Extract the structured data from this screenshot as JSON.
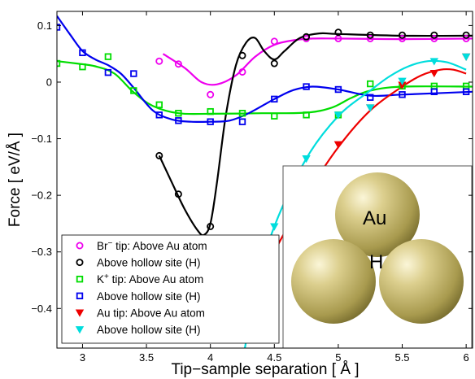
{
  "chart_data": {
    "type": "line",
    "xlabel": "Tip−sample separation [ Å ]",
    "ylabel": "Force [ eV/Å ]",
    "xlim": [
      2.8,
      6.05
    ],
    "ylim": [
      -0.47,
      0.125
    ],
    "xticks": [
      3,
      3.5,
      4,
      4.5,
      5,
      5.5,
      6
    ],
    "xtick_labels": [
      "3",
      "3.5",
      "4",
      "4.5",
      "5",
      "5.5",
      "6"
    ],
    "yticks": [
      0.1,
      0,
      -0.1,
      -0.2,
      -0.3,
      -0.4
    ],
    "ytick_labels": [
      "0.1",
      "0",
      "−0.1",
      "−0.2",
      "−0.3",
      "−0.4"
    ],
    "grid": false,
    "legend_position": "lower-left",
    "legend_title_parts": [
      {
        "base": "Br",
        "sup": "−",
        "rest": " tip: Above Au atom"
      },
      {
        "base": "K",
        "sup": "+",
        "rest": " tip: Above Au atom"
      }
    ],
    "series": [
      {
        "name": "Br⁻ tip: Above Au atom",
        "color": "#ee00ee",
        "marker": "circle",
        "x": [
          3.6,
          3.75,
          4.0,
          4.25,
          4.5,
          4.75,
          5.0,
          5.25,
          5.5,
          5.75,
          6.0
        ],
        "y": [
          0.037,
          0.032,
          -0.022,
          0.018,
          0.072,
          0.077,
          0.077,
          0.077,
          0.077,
          0.077,
          0.077
        ],
        "curve": [
          [
            3.63,
            0.05
          ],
          [
            3.8,
            0.025
          ],
          [
            3.93,
            0.0
          ],
          [
            4.05,
            -0.004
          ],
          [
            4.2,
            0.012
          ],
          [
            4.35,
            0.045
          ],
          [
            4.5,
            0.066
          ],
          [
            4.65,
            0.074
          ],
          [
            4.8,
            0.077
          ],
          [
            5.0,
            0.077
          ],
          [
            5.5,
            0.076
          ],
          [
            6.05,
            0.077
          ]
        ]
      },
      {
        "name": "Above hollow site (H)",
        "color": "#000000",
        "marker": "circle",
        "x": [
          3.6,
          3.75,
          4.0,
          4.25,
          4.5,
          4.75,
          5.0,
          5.25,
          5.5,
          5.75,
          6.0
        ],
        "y": [
          -0.13,
          -0.198,
          -0.255,
          0.047,
          0.033,
          0.08,
          0.088,
          0.083,
          0.083,
          0.083,
          0.083
        ],
        "curve": [
          [
            3.6,
            -0.13
          ],
          [
            3.7,
            -0.178
          ],
          [
            3.8,
            -0.225
          ],
          [
            3.9,
            -0.262
          ],
          [
            3.95,
            -0.27
          ],
          [
            4.0,
            -0.25
          ],
          [
            4.05,
            -0.18
          ],
          [
            4.12,
            -0.06
          ],
          [
            4.2,
            0.03
          ],
          [
            4.28,
            0.07
          ],
          [
            4.35,
            0.078
          ],
          [
            4.42,
            0.055
          ],
          [
            4.5,
            0.04
          ],
          [
            4.58,
            0.055
          ],
          [
            4.7,
            0.078
          ],
          [
            4.85,
            0.086
          ],
          [
            5.0,
            0.085
          ],
          [
            5.5,
            0.082
          ],
          [
            6.05,
            0.082
          ]
        ]
      },
      {
        "name": "K⁺ tip: Above Au atom",
        "color": "#00dd00",
        "marker": "square",
        "x": [
          2.8,
          3.0,
          3.2,
          3.4,
          3.6,
          3.75,
          4.0,
          4.25,
          4.5,
          4.75,
          5.0,
          5.25,
          5.5,
          5.75,
          6.0
        ],
        "y": [
          0.033,
          0.027,
          0.045,
          -0.015,
          -0.04,
          -0.055,
          -0.052,
          -0.055,
          -0.06,
          -0.058,
          -0.058,
          -0.003,
          -0.007,
          -0.007,
          -0.007
        ],
        "curve": [
          [
            2.8,
            0.037
          ],
          [
            2.95,
            0.033
          ],
          [
            3.1,
            0.028
          ],
          [
            3.25,
            0.015
          ],
          [
            3.4,
            -0.018
          ],
          [
            3.55,
            -0.042
          ],
          [
            3.75,
            -0.055
          ],
          [
            4.0,
            -0.056
          ],
          [
            4.4,
            -0.055
          ],
          [
            4.75,
            -0.054
          ],
          [
            4.95,
            -0.045
          ],
          [
            5.1,
            -0.028
          ],
          [
            5.25,
            -0.015
          ],
          [
            5.5,
            -0.008
          ],
          [
            6.05,
            -0.008
          ]
        ]
      },
      {
        "name": "Above hollow site (H)",
        "color": "#0000ee",
        "marker": "square",
        "x": [
          2.8,
          3.0,
          3.2,
          3.4,
          3.6,
          3.75,
          4.0,
          4.25,
          4.5,
          4.75,
          5.0,
          5.25,
          5.5,
          5.75,
          6.0
        ],
        "y": [
          0.097,
          0.052,
          0.017,
          0.015,
          -0.058,
          -0.068,
          -0.07,
          -0.07,
          -0.03,
          -0.008,
          -0.013,
          -0.027,
          -0.022,
          -0.017,
          -0.017
        ],
        "curve": [
          [
            2.8,
            0.117
          ],
          [
            2.9,
            0.085
          ],
          [
            3.0,
            0.055
          ],
          [
            3.1,
            0.04
          ],
          [
            3.2,
            0.03
          ],
          [
            3.3,
            0.015
          ],
          [
            3.4,
            -0.01
          ],
          [
            3.55,
            -0.05
          ],
          [
            3.7,
            -0.066
          ],
          [
            3.85,
            -0.07
          ],
          [
            4.0,
            -0.07
          ],
          [
            4.15,
            -0.068
          ],
          [
            4.3,
            -0.055
          ],
          [
            4.5,
            -0.03
          ],
          [
            4.65,
            -0.014
          ],
          [
            4.8,
            -0.008
          ],
          [
            5.0,
            -0.013
          ],
          [
            5.25,
            -0.024
          ],
          [
            5.5,
            -0.022
          ],
          [
            6.05,
            -0.017
          ]
        ]
      },
      {
        "name": "Au tip: Above Au atom",
        "color": "#ee0000",
        "marker": "triangle-down",
        "x": [
          4.5,
          4.75,
          5.0,
          5.25,
          5.5,
          5.75,
          6.0
        ],
        "y": [
          -0.3,
          -0.205,
          -0.11,
          -0.045,
          -0.005,
          0.016,
          0.045
        ],
        "curve": [
          [
            4.25,
            -0.44
          ],
          [
            4.35,
            -0.38
          ],
          [
            4.5,
            -0.3
          ],
          [
            4.75,
            -0.2
          ],
          [
            5.0,
            -0.115
          ],
          [
            5.25,
            -0.05
          ],
          [
            5.5,
            -0.008
          ],
          [
            5.65,
            0.012
          ],
          [
            5.8,
            0.022
          ],
          [
            5.9,
            0.022
          ],
          [
            6.0,
            0.015
          ]
        ]
      },
      {
        "name": "Above hollow site (H)",
        "color": "#00dddd",
        "marker": "triangle-down",
        "x": [
          4.5,
          4.75,
          5.0,
          5.25,
          5.5,
          5.75,
          6.0
        ],
        "y": [
          -0.255,
          -0.135,
          -0.058,
          -0.045,
          0.002,
          0.037,
          0.045
        ],
        "curve": [
          [
            4.27,
            -0.47
          ],
          [
            4.35,
            -0.37
          ],
          [
            4.5,
            -0.255
          ],
          [
            4.75,
            -0.135
          ],
          [
            5.0,
            -0.06
          ],
          [
            5.25,
            -0.015
          ],
          [
            5.4,
            0.01
          ],
          [
            5.55,
            0.028
          ],
          [
            5.7,
            0.037
          ],
          [
            5.85,
            0.035
          ],
          [
            6.0,
            0.022
          ]
        ]
      }
    ],
    "inset": {
      "labels": [
        "Au",
        "H"
      ]
    }
  }
}
